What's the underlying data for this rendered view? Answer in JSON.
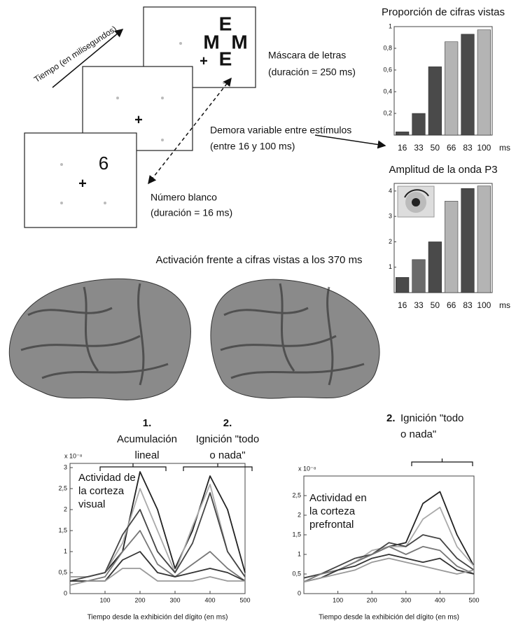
{
  "diagram": {
    "time_axis": "Tiempo (en milisegundos)",
    "mask_letters": [
      "E",
      "M",
      "M",
      "E"
    ],
    "fixation": "+",
    "target_digit": "6",
    "mask_label": [
      "Máscara de letras",
      "(duración = 250 ms)"
    ],
    "delay_label": [
      "Demora variable entre estímulos",
      "(entre 16 y 100 ms)"
    ],
    "target_label": [
      "Número blanco",
      "(duración = 16 ms)"
    ]
  },
  "brain_title": "Activación frente a cifras vistas a los 370 ms",
  "chart_data": [
    {
      "type": "bar",
      "title": "Proporción de cifras vistas",
      "categories": [
        "16",
        "33",
        "50",
        "66",
        "83",
        "100"
      ],
      "x_unit": "ms",
      "values": [
        0.03,
        0.2,
        0.63,
        0.86,
        0.93,
        0.97
      ],
      "colors": [
        "#4a4a4a",
        "#4a4a4a",
        "#4a4a4a",
        "#b4b4b4",
        "#4a4a4a",
        "#b4b4b4"
      ],
      "ylim": [
        0,
        1
      ],
      "yticks": [
        {
          "value": 0.2,
          "label": "0,2"
        },
        {
          "value": 0.4,
          "label": "0,4"
        },
        {
          "value": 0.6,
          "label": "0,6"
        },
        {
          "value": 0.8,
          "label": "0,8"
        },
        1
      ]
    },
    {
      "type": "bar",
      "title": "Amplitud de la onda P3",
      "categories": [
        "16",
        "33",
        "50",
        "66",
        "83",
        "100"
      ],
      "x_unit": "ms",
      "values": [
        0.6,
        1.3,
        2.0,
        3.6,
        4.1,
        4.2
      ],
      "colors": [
        "#4a4a4a",
        "#6a6a6a",
        "#4a4a4a",
        "#b4b4b4",
        "#4a4a4a",
        "#b4b4b4"
      ],
      "ylim": [
        0,
        4.3
      ],
      "yticks": [
        1,
        2,
        3,
        4
      ]
    },
    {
      "type": "line",
      "y_scale_label": "x 10⁻⁸",
      "panel_label": [
        "Actividad de",
        "la corteza",
        "visual"
      ],
      "annotations": [
        {
          "number": "1.",
          "lines": [
            "Acumulación",
            "lineal"
          ]
        },
        {
          "number": "2.",
          "lines": [
            "Ignición \"todo",
            "o nada\""
          ]
        }
      ],
      "xlabel": "Tiempo desde la exhibición del dígito (en ms)",
      "x": [
        0,
        50,
        100,
        150,
        200,
        250,
        300,
        350,
        400,
        450,
        500
      ],
      "series": [
        {
          "color": "#222222",
          "values": [
            0.4,
            0.4,
            0.5,
            1.0,
            2.9,
            2.0,
            0.6,
            1.5,
            2.8,
            2.0,
            0.5
          ]
        },
        {
          "color": "#aaaaaa",
          "values": [
            0.4,
            0.4,
            0.5,
            1.2,
            2.5,
            1.5,
            0.5,
            1.6,
            2.6,
            1.0,
            0.4
          ]
        },
        {
          "color": "#444444",
          "values": [
            0.3,
            0.4,
            0.5,
            1.4,
            2.0,
            1.0,
            0.5,
            1.2,
            2.4,
            1.0,
            0.4
          ]
        },
        {
          "color": "#777777",
          "values": [
            0.3,
            0.3,
            0.4,
            1.0,
            1.5,
            0.7,
            0.4,
            0.7,
            1.0,
            0.6,
            0.3
          ]
        },
        {
          "color": "#333333",
          "values": [
            0.3,
            0.3,
            0.3,
            0.8,
            1.0,
            0.5,
            0.4,
            0.5,
            0.6,
            0.5,
            0.3
          ]
        },
        {
          "color": "#999999",
          "values": [
            0.2,
            0.3,
            0.3,
            0.6,
            0.6,
            0.3,
            0.3,
            0.3,
            0.4,
            0.3,
            0.3
          ]
        }
      ],
      "xlim": [
        0,
        500
      ],
      "xticks": [
        100,
        200,
        300,
        400,
        500
      ],
      "ylim": [
        0,
        3.1
      ],
      "yticks": [
        0,
        {
          "value": 0.5,
          "label": "0,5"
        },
        1,
        {
          "value": 1.5,
          "label": "1,5"
        },
        2,
        {
          "value": 2.5,
          "label": "2,5"
        },
        3
      ]
    },
    {
      "type": "line",
      "y_scale_label": "x 10⁻⁸",
      "panel_label": [
        "Actividad en",
        "la corteza",
        "prefrontal"
      ],
      "annotations": [
        {
          "number": "2.",
          "lines": [
            "Ignición \"todo",
            "o nada\""
          ]
        }
      ],
      "xlabel": "Tiempo desde la exhibición del dígito (en ms)",
      "x": [
        0,
        50,
        100,
        150,
        200,
        250,
        300,
        350,
        400,
        450,
        500
      ],
      "series": [
        {
          "color": "#222222",
          "values": [
            0.4,
            0.5,
            0.6,
            0.8,
            1.0,
            1.2,
            1.3,
            2.3,
            2.6,
            1.5,
            0.7
          ]
        },
        {
          "color": "#aaaaaa",
          "values": [
            0.4,
            0.5,
            0.6,
            0.8,
            1.1,
            1.2,
            1.2,
            1.9,
            2.2,
            1.2,
            0.7
          ]
        },
        {
          "color": "#444444",
          "values": [
            0.4,
            0.5,
            0.7,
            0.9,
            1.0,
            1.3,
            1.2,
            1.5,
            1.4,
            0.9,
            0.6
          ]
        },
        {
          "color": "#777777",
          "values": [
            0.3,
            0.5,
            0.6,
            0.8,
            1.0,
            1.2,
            1.0,
            1.2,
            1.1,
            0.7,
            0.5
          ]
        },
        {
          "color": "#333333",
          "values": [
            0.3,
            0.4,
            0.6,
            0.7,
            0.9,
            1.0,
            0.9,
            0.8,
            0.9,
            0.6,
            0.5
          ]
        },
        {
          "color": "#999999",
          "values": [
            0.3,
            0.4,
            0.5,
            0.6,
            0.8,
            0.9,
            0.8,
            0.7,
            0.6,
            0.5,
            0.6
          ]
        }
      ],
      "xlim": [
        0,
        500
      ],
      "xticks": [
        100,
        200,
        300,
        400,
        500
      ],
      "ylim": [
        0,
        3
      ],
      "yticks": [
        0,
        {
          "value": 0.5,
          "label": "0,5"
        },
        1,
        {
          "value": 1.5,
          "label": "1,5"
        },
        2,
        {
          "value": 2.5,
          "label": "2,5"
        }
      ]
    }
  ]
}
